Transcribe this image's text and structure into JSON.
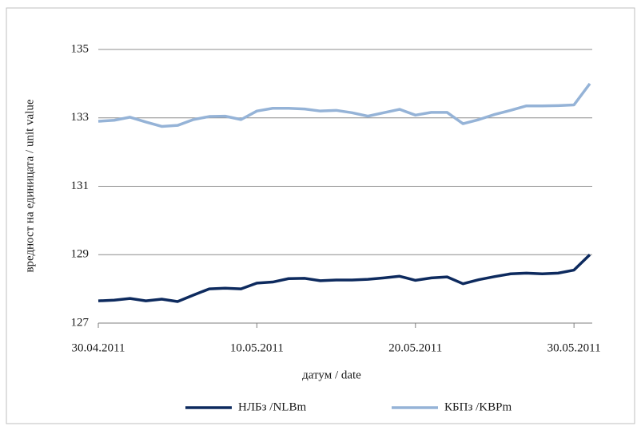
{
  "chart_data": {
    "type": "line",
    "xlabel": "датум / date",
    "ylabel": "вредност на единицата / unit value",
    "x": [
      "30.04.2011",
      "01.05.2011",
      "02.05.2011",
      "03.05.2011",
      "04.05.2011",
      "05.05.2011",
      "06.05.2011",
      "07.05.2011",
      "08.05.2011",
      "09.05.2011",
      "10.05.2011",
      "11.05.2011",
      "12.05.2011",
      "13.05.2011",
      "14.05.2011",
      "15.05.2011",
      "16.05.2011",
      "17.05.2011",
      "18.05.2011",
      "19.05.2011",
      "20.05.2011",
      "21.05.2011",
      "22.05.2011",
      "23.05.2011",
      "24.05.2011",
      "25.05.2011",
      "26.05.2011",
      "27.05.2011",
      "28.05.2011",
      "29.05.2011",
      "30.05.2011",
      "31.05.2011"
    ],
    "series": [
      {
        "name": "НЛБз /NLBm",
        "color": "#0d2a5e",
        "values": [
          127.65,
          127.67,
          127.72,
          127.65,
          127.7,
          127.63,
          127.82,
          128.0,
          128.02,
          128.0,
          128.17,
          128.2,
          128.3,
          128.31,
          128.24,
          128.26,
          128.26,
          128.28,
          128.32,
          128.37,
          128.25,
          128.32,
          128.35,
          128.15,
          128.27,
          128.36,
          128.44,
          128.46,
          128.44,
          128.46,
          128.55,
          129.0
        ]
      },
      {
        "name": "КБПз /KBPm",
        "color": "#95b3d7",
        "values": [
          132.9,
          132.93,
          133.02,
          132.88,
          132.75,
          132.78,
          132.95,
          133.04,
          133.05,
          132.95,
          133.2,
          133.28,
          133.28,
          133.26,
          133.2,
          133.22,
          133.15,
          133.05,
          133.15,
          133.25,
          133.08,
          133.16,
          133.16,
          132.83,
          132.95,
          133.1,
          133.22,
          133.35,
          133.35,
          133.36,
          133.38,
          134.0
        ]
      }
    ],
    "xlim": [
      "30.04.2011",
      "31.05.2011"
    ],
    "xticks": [
      "30.04.2011",
      "10.05.2011",
      "20.05.2011",
      "30.05.2011"
    ],
    "ylim": [
      127,
      135
    ],
    "yticks": [
      127,
      129,
      131,
      133,
      135
    ],
    "grid": true,
    "legend": "bottom"
  }
}
